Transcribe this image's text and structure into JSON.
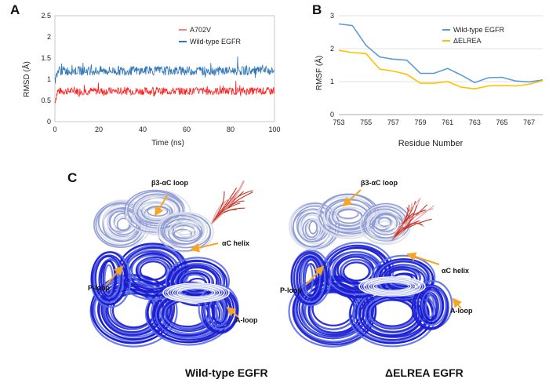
{
  "panels": {
    "a": "A",
    "b": "B",
    "c": "C"
  },
  "colors": {
    "mutant_red": "#ff1f1f",
    "wildtype_blue": "#2e75b6",
    "rmsf_wt": "#5b9bd5",
    "rmsf_del": "#ffc000",
    "structure_blue": "#1a1ad0",
    "structure_light": "#d8dde8",
    "structure_red": "#c0392b",
    "arrow_orange": "#f5a623"
  },
  "chart_data": [
    {
      "type": "line",
      "panel": "A",
      "xlabel": "Time (ns)",
      "ylabel": "RMSD (Å)",
      "xlim": [
        0,
        100
      ],
      "ylim": [
        0,
        2.5
      ],
      "xticks": [
        "0",
        "20",
        "40",
        "60",
        "80",
        "100"
      ],
      "yticks": [
        "0",
        "0.5",
        "1",
        "1.5",
        "2",
        "2.5"
      ],
      "grid": false,
      "legend": "top-right",
      "series": [
        {
          "name": "A702V",
          "color": "#ff1f1f",
          "mean": 0.72,
          "spread": 0.09,
          "x": [
            0,
            100
          ]
        },
        {
          "name": "Wild-type EGFR",
          "color": "#2e75b6",
          "mean": 1.2,
          "spread": 0.11,
          "x": [
            0,
            100
          ]
        }
      ]
    },
    {
      "type": "line",
      "panel": "B",
      "xlabel": "Residue Number",
      "ylabel": "RMSF (Å)",
      "xlim": [
        753,
        768
      ],
      "ylim": [
        0,
        3
      ],
      "xticks": [
        "753",
        "755",
        "757",
        "759",
        "761",
        "763",
        "765",
        "767"
      ],
      "yticks": [
        "0",
        "1",
        "2",
        "3"
      ],
      "grid": true,
      "legend": "top-right",
      "x": [
        753,
        754,
        755,
        756,
        757,
        758,
        759,
        760,
        761,
        762,
        763,
        764,
        765,
        766,
        767,
        768
      ],
      "series": [
        {
          "name": "Wild-type EGFR",
          "color": "#5b9bd5",
          "values": [
            2.75,
            2.7,
            2.1,
            1.75,
            1.68,
            1.65,
            1.25,
            1.25,
            1.4,
            1.2,
            0.97,
            1.12,
            1.13,
            1.02,
            0.99,
            1.05
          ]
        },
        {
          "name": "ΔELREA",
          "color": "#ffc000",
          "values": [
            1.95,
            1.88,
            1.85,
            1.38,
            1.32,
            1.22,
            0.95,
            0.95,
            1.0,
            0.83,
            0.78,
            0.87,
            0.88,
            0.87,
            0.92,
            1.03
          ]
        }
      ]
    }
  ],
  "structures": {
    "left": {
      "title": "Wild-type EGFR",
      "labels": {
        "b3ac": "β3-αC loop",
        "ac_helix": "αC helix",
        "p_loop": "P-loop",
        "a_loop": "A-loop"
      }
    },
    "right": {
      "title": "ΔELREA EGFR",
      "labels": {
        "b3ac": "β3-αC loop",
        "ac_helix": "αC helix",
        "p_loop": "P-loop",
        "a_loop": "A-loop"
      }
    }
  }
}
